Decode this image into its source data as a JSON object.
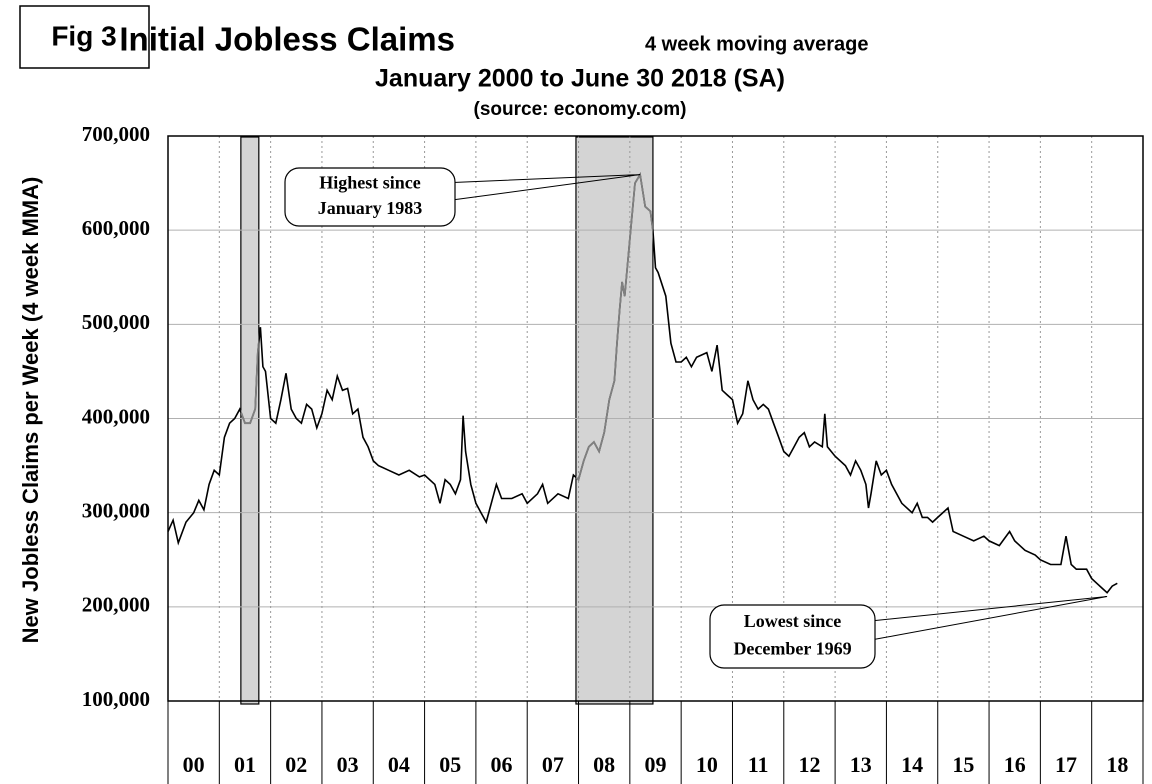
{
  "chart_data": {
    "type": "line",
    "figure_label": "Fig 3",
    "title": "Initial Jobless Claims",
    "title_note": "4 week moving average",
    "subtitle": "January 2000 to June 30 2018 (SA)",
    "source": "(source: economy.com)",
    "ylabel": "New Jobless Claims per Week (4 week MMA)",
    "xlim": [
      2000,
      2019
    ],
    "ylim": [
      100000,
      700000
    ],
    "yticks": [
      {
        "value": 100000,
        "label": "100,000"
      },
      {
        "value": 200000,
        "label": "200,000"
      },
      {
        "value": 300000,
        "label": "300,000"
      },
      {
        "value": 400000,
        "label": "400,000"
      },
      {
        "value": 500000,
        "label": "500,000"
      },
      {
        "value": 600000,
        "label": "600,000"
      },
      {
        "value": 700000,
        "label": "700,000"
      }
    ],
    "xticks": [
      {
        "value": 2000.5,
        "label": "00"
      },
      {
        "value": 2001.5,
        "label": "01"
      },
      {
        "value": 2002.5,
        "label": "02"
      },
      {
        "value": 2003.5,
        "label": "03"
      },
      {
        "value": 2004.5,
        "label": "04"
      },
      {
        "value": 2005.5,
        "label": "05"
      },
      {
        "value": 2006.5,
        "label": "06"
      },
      {
        "value": 2007.5,
        "label": "07"
      },
      {
        "value": 2008.5,
        "label": "08"
      },
      {
        "value": 2009.5,
        "label": "09"
      },
      {
        "value": 2010.5,
        "label": "10"
      },
      {
        "value": 2011.5,
        "label": "11"
      },
      {
        "value": 2012.5,
        "label": "12"
      },
      {
        "value": 2013.5,
        "label": "13"
      },
      {
        "value": 2014.5,
        "label": "14"
      },
      {
        "value": 2015.5,
        "label": "15"
      },
      {
        "value": 2016.5,
        "label": "16"
      },
      {
        "value": 2017.5,
        "label": "17"
      },
      {
        "value": 2018.5,
        "label": "18"
      }
    ],
    "xgrid": [
      2001,
      2002,
      2003,
      2004,
      2005,
      2006,
      2007,
      2008,
      2009,
      2010,
      2011,
      2012,
      2013,
      2014,
      2015,
      2016,
      2017,
      2018
    ],
    "grid": true,
    "shaded_periods": [
      [
        2001.42,
        2001.77
      ],
      [
        2007.95,
        2009.45
      ]
    ],
    "shade_color": "#d4d4d4",
    "recession_line_color": "#808080",
    "annotations": [
      {
        "lines": [
          "Highest since",
          "January 1983"
        ],
        "x": 2009.2,
        "y": 659000
      },
      {
        "lines": [
          "Lowest since",
          "December 1969"
        ],
        "x": 2018.3,
        "y": 211000
      }
    ],
    "series": [
      {
        "name": "Initial Jobless Claims",
        "color": "#000000",
        "x": [
          2000.0,
          2000.1,
          2000.2,
          2000.35,
          2000.5,
          2000.6,
          2000.7,
          2000.8,
          2000.9,
          2001.0,
          2001.1,
          2001.2,
          2001.3,
          2001.4,
          2001.5,
          2001.6,
          2001.7,
          2001.75,
          2001.8,
          2001.85,
          2001.9,
          2002.0,
          2002.1,
          2002.2,
          2002.3,
          2002.4,
          2002.5,
          2002.6,
          2002.7,
          2002.8,
          2002.9,
          2003.0,
          2003.1,
          2003.2,
          2003.3,
          2003.4,
          2003.5,
          2003.6,
          2003.7,
          2003.8,
          2003.9,
          2004.0,
          2004.1,
          2004.3,
          2004.5,
          2004.7,
          2004.9,
          2005.0,
          2005.2,
          2005.3,
          2005.4,
          2005.5,
          2005.6,
          2005.7,
          2005.75,
          2005.8,
          2005.9,
          2006.0,
          2006.1,
          2006.2,
          2006.3,
          2006.4,
          2006.5,
          2006.7,
          2006.9,
          2007.0,
          2007.2,
          2007.3,
          2007.4,
          2007.6,
          2007.8,
          2007.9,
          2008.0,
          2008.1,
          2008.2,
          2008.3,
          2008.4,
          2008.5,
          2008.6,
          2008.7,
          2008.75,
          2008.8,
          2008.85,
          2008.9,
          2009.0,
          2009.1,
          2009.2,
          2009.3,
          2009.4,
          2009.45,
          2009.5,
          2009.55,
          2009.7,
          2009.8,
          2009.9,
          2010.0,
          2010.1,
          2010.2,
          2010.3,
          2010.5,
          2010.6,
          2010.7,
          2010.8,
          2010.9,
          2011.0,
          2011.1,
          2011.2,
          2011.3,
          2011.4,
          2011.5,
          2011.6,
          2011.7,
          2011.8,
          2011.9,
          2012.0,
          2012.1,
          2012.2,
          2012.3,
          2012.4,
          2012.5,
          2012.6,
          2012.75,
          2012.8,
          2012.85,
          2013.0,
          2013.2,
          2013.3,
          2013.4,
          2013.5,
          2013.6,
          2013.65,
          2013.7,
          2013.8,
          2013.9,
          2014.0,
          2014.1,
          2014.3,
          2014.5,
          2014.6,
          2014.7,
          2014.8,
          2014.9,
          2015.0,
          2015.2,
          2015.3,
          2015.5,
          2015.7,
          2015.9,
          2016.0,
          2016.2,
          2016.4,
          2016.5,
          2016.7,
          2016.9,
          2017.0,
          2017.2,
          2017.4,
          2017.5,
          2017.6,
          2017.7,
          2017.9,
          2018.0,
          2018.1,
          2018.2,
          2018.3,
          2018.4,
          2018.5
        ],
        "values": [
          280000,
          292000,
          268000,
          290000,
          300000,
          313000,
          303000,
          330000,
          345000,
          340000,
          380000,
          395000,
          400000,
          410000,
          395000,
          395000,
          410000,
          470000,
          497000,
          455000,
          450000,
          400000,
          395000,
          420000,
          448000,
          410000,
          400000,
          395000,
          415000,
          410000,
          390000,
          405000,
          430000,
          420000,
          445000,
          430000,
          432000,
          405000,
          410000,
          380000,
          370000,
          355000,
          350000,
          345000,
          340000,
          345000,
          338000,
          340000,
          330000,
          310000,
          335000,
          330000,
          320000,
          335000,
          403000,
          365000,
          330000,
          310000,
          300000,
          290000,
          310000,
          330000,
          315000,
          315000,
          320000,
          310000,
          320000,
          330000,
          310000,
          320000,
          315000,
          340000,
          335000,
          355000,
          370000,
          375000,
          365000,
          385000,
          420000,
          440000,
          480000,
          515000,
          545000,
          530000,
          590000,
          650000,
          659000,
          625000,
          620000,
          600000,
          560000,
          555000,
          530000,
          480000,
          460000,
          460000,
          465000,
          455000,
          465000,
          470000,
          450000,
          478000,
          430000,
          425000,
          420000,
          395000,
          405000,
          440000,
          420000,
          410000,
          415000,
          410000,
          395000,
          380000,
          365000,
          360000,
          370000,
          380000,
          385000,
          370000,
          375000,
          370000,
          405000,
          370000,
          360000,
          350000,
          340000,
          355000,
          345000,
          330000,
          305000,
          320000,
          355000,
          340000,
          345000,
          330000,
          310000,
          300000,
          310000,
          295000,
          295000,
          290000,
          295000,
          305000,
          280000,
          275000,
          270000,
          275000,
          270000,
          265000,
          280000,
          270000,
          260000,
          255000,
          250000,
          245000,
          245000,
          275000,
          245000,
          240000,
          240000,
          230000,
          225000,
          220000,
          215000,
          222000,
          225000
        ]
      }
    ]
  }
}
